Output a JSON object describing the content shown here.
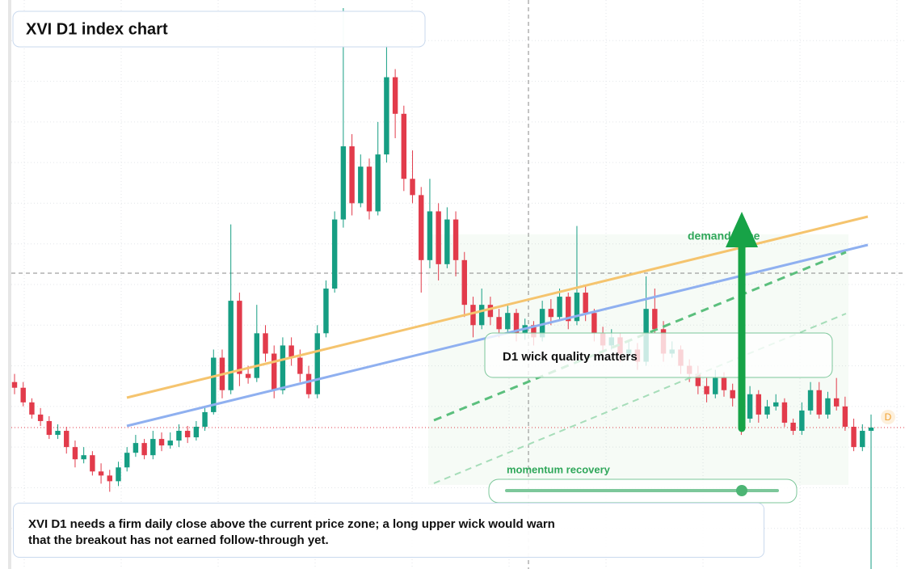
{
  "chart_data": {
    "type": "candlestick",
    "title": "XVI D1 index chart",
    "annotations": {
      "zone": "demand zone",
      "wick": "D1 wick quality matters",
      "momentum": "momentum recovery",
      "note": "XVI D1 needs a firm daily close above the current price zone; a long upper wick would warn that the breakout has not earned follow-through yet.",
      "badge": "D"
    },
    "up_color": "#169e83",
    "down_color": "#e23b4b",
    "ylim": [
      90,
      160
    ],
    "ygrid": [
      95,
      100,
      105,
      110,
      115,
      120,
      125,
      130,
      135,
      140,
      145,
      150,
      155
    ],
    "last_price": 107.4,
    "ohlc": [
      [
        113,
        114,
        111.5,
        112.3
      ],
      [
        112.3,
        113,
        110,
        110.5
      ],
      [
        110.5,
        111,
        108.5,
        109
      ],
      [
        109,
        109.8,
        107.6,
        108.2
      ],
      [
        108.2,
        108.8,
        106,
        106.5
      ],
      [
        106.5,
        107.8,
        106,
        107
      ],
      [
        107,
        107.5,
        104.2,
        105
      ],
      [
        105,
        105.8,
        102.5,
        103.5
      ],
      [
        103.5,
        105,
        103,
        104
      ],
      [
        104,
        104.5,
        101.5,
        102
      ],
      [
        102,
        103,
        100.5,
        101.5
      ],
      [
        101.5,
        102.2,
        99.5,
        100.8
      ],
      [
        100.8,
        103.2,
        100.2,
        102.5
      ],
      [
        102.5,
        105,
        102,
        104.3
      ],
      [
        104.3,
        106.5,
        103.8,
        105.5
      ],
      [
        105.5,
        106,
        103.5,
        104
      ],
      [
        104,
        107,
        103.5,
        106
      ],
      [
        106,
        106.8,
        104.5,
        105.2
      ],
      [
        105.2,
        106.8,
        104.8,
        105.8
      ],
      [
        105.8,
        107.8,
        105,
        107
      ],
      [
        107,
        107.6,
        105.5,
        106.2
      ],
      [
        106.2,
        108.2,
        105.8,
        107.5
      ],
      [
        107.5,
        110,
        107,
        109.3
      ],
      [
        109.3,
        117,
        109,
        116
      ],
      [
        116,
        117,
        111,
        112
      ],
      [
        112,
        132.4,
        111.5,
        123
      ],
      [
        123,
        124,
        112.5,
        114
      ],
      [
        114,
        115,
        112.8,
        113.5
      ],
      [
        113.5,
        122.5,
        113,
        119
      ],
      [
        119,
        120,
        115.5,
        116.5
      ],
      [
        116.5,
        117.5,
        111,
        112
      ],
      [
        112,
        118.5,
        111.5,
        117.5
      ],
      [
        117.5,
        118.5,
        115,
        116
      ],
      [
        116,
        117,
        113,
        114
      ],
      [
        114,
        115,
        111,
        111.5
      ],
      [
        111.5,
        120,
        111,
        119
      ],
      [
        119,
        125.5,
        118.5,
        124.5
      ],
      [
        124.5,
        134,
        124,
        133
      ],
      [
        133,
        159,
        132,
        142
      ],
      [
        142,
        143.5,
        133.5,
        135
      ],
      [
        135,
        141,
        134.5,
        139.5
      ],
      [
        139.5,
        140.5,
        133,
        134
      ],
      [
        134,
        145,
        133.5,
        141
      ],
      [
        141,
        154.5,
        140,
        150.5
      ],
      [
        150.5,
        151.5,
        143,
        146
      ],
      [
        146,
        147,
        136.5,
        138
      ],
      [
        138,
        141.5,
        135,
        136
      ],
      [
        136,
        137,
        124,
        128
      ],
      [
        128,
        138,
        127,
        134
      ],
      [
        134,
        135,
        125.5,
        127.5
      ],
      [
        127.5,
        134.5,
        127,
        133
      ],
      [
        133,
        134,
        126,
        128
      ],
      [
        128,
        129,
        121,
        122.5
      ],
      [
        122.5,
        123.5,
        118.5,
        120
      ],
      [
        120,
        124.5,
        119.5,
        122.5
      ],
      [
        122.5,
        123.5,
        120,
        121
      ],
      [
        121,
        122,
        118.5,
        119.5
      ],
      [
        119.5,
        122.5,
        119,
        121.5
      ],
      [
        121.5,
        122,
        118,
        119
      ],
      [
        119,
        120.8,
        118.2,
        120
      ],
      [
        120,
        120.5,
        117.5,
        118.5
      ],
      [
        118.5,
        123,
        118,
        122
      ],
      [
        122,
        123.2,
        120,
        121
      ],
      [
        121,
        124.5,
        120.5,
        123.5
      ],
      [
        123.5,
        124,
        119.5,
        120.5
      ],
      [
        120.5,
        132.2,
        120,
        124
      ],
      [
        124,
        125,
        120.5,
        121.5
      ],
      [
        121.5,
        122,
        118,
        119
      ],
      [
        119,
        119.8,
        116.5,
        117.5
      ],
      [
        117.5,
        119.5,
        117,
        118.5
      ],
      [
        118.5,
        119,
        115.5,
        116.5
      ],
      [
        116.5,
        118,
        116,
        117
      ],
      [
        117,
        117.8,
        114.5,
        115.5
      ],
      [
        115.5,
        126,
        115,
        122
      ],
      [
        122,
        124.5,
        119,
        119.5
      ],
      [
        119.5,
        120.5,
        115.5,
        116.5
      ],
      [
        116.5,
        118,
        116,
        117
      ],
      [
        117,
        117.5,
        114,
        115
      ],
      [
        115,
        115.8,
        113,
        114
      ],
      [
        114,
        115,
        111.5,
        112.5
      ],
      [
        112.5,
        113.5,
        110.5,
        111.5
      ],
      [
        111.5,
        114.5,
        111,
        113.5
      ],
      [
        113.5,
        114.2,
        111.2,
        112
      ],
      [
        112,
        112.8,
        110,
        111
      ],
      [
        111,
        111.8,
        106.5,
        108.5
      ],
      [
        108.5,
        112.5,
        108,
        111.5
      ],
      [
        111.5,
        112,
        108,
        109
      ],
      [
        109,
        110.8,
        108.5,
        110
      ],
      [
        110,
        111.5,
        109.5,
        110.5
      ],
      [
        110.5,
        111,
        107.5,
        108
      ],
      [
        108,
        108.5,
        106.5,
        107
      ],
      [
        107,
        110.5,
        106.5,
        109.5
      ],
      [
        109.5,
        113,
        109,
        112
      ],
      [
        112,
        113,
        108.5,
        109
      ],
      [
        109,
        111.8,
        108.5,
        111
      ],
      [
        111,
        113.5,
        109.5,
        110
      ],
      [
        110,
        111.2,
        107,
        107.5
      ],
      [
        107.5,
        108.5,
        104.5,
        105
      ],
      [
        105,
        107.8,
        104.5,
        107
      ],
      [
        107,
        109,
        90,
        107.4
      ]
    ]
  }
}
